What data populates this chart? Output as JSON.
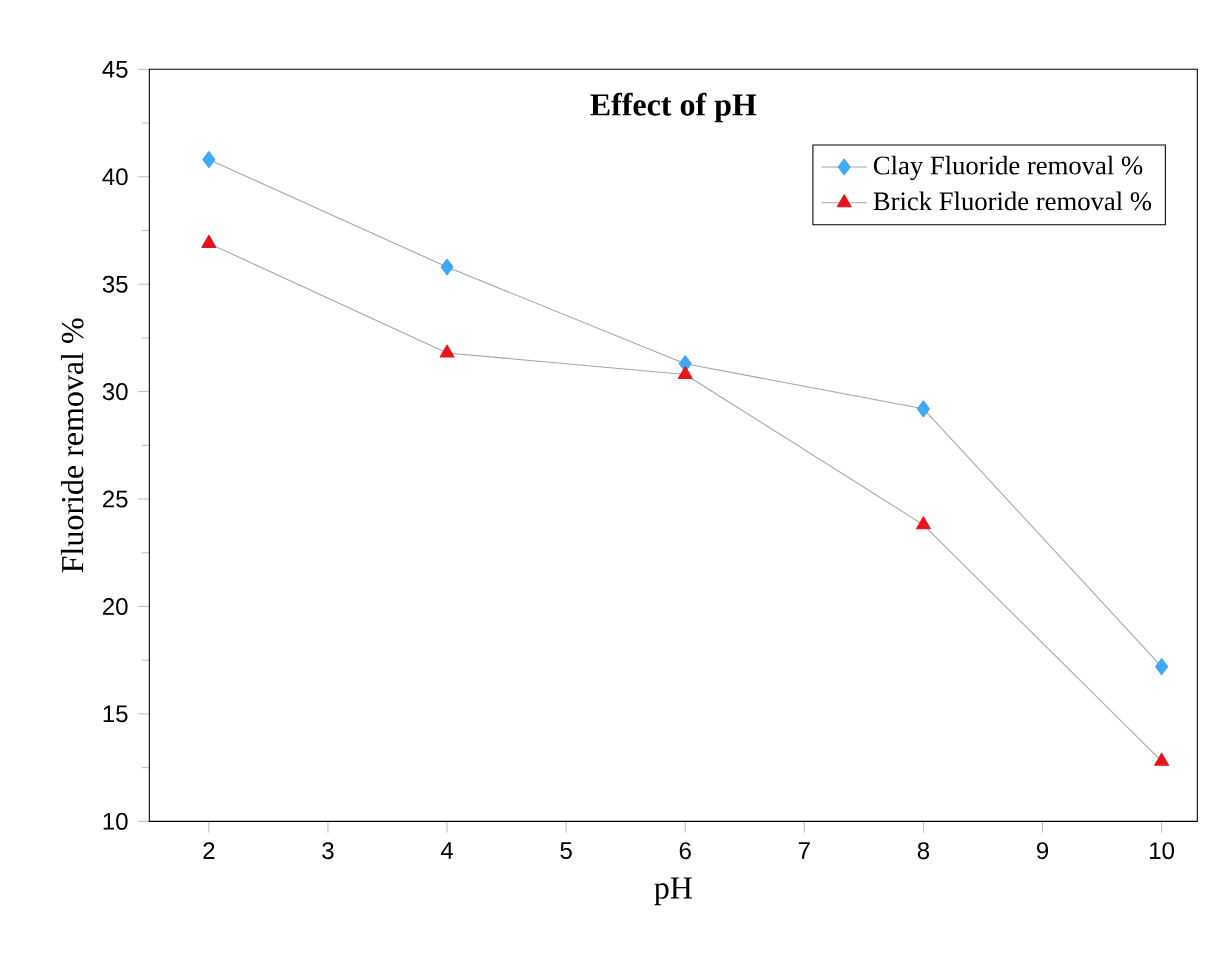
{
  "chart_data": {
    "type": "line",
    "title": "Effect of pH",
    "xlabel": "pH",
    "ylabel": "Fluoride removal %",
    "x": [
      2,
      4,
      6,
      8,
      10
    ],
    "series": [
      {
        "name": "Clay Fluoride removal %",
        "color": "#3fa9f5",
        "marker": "diamond",
        "values": [
          40.8,
          35.8,
          31.3,
          29.2,
          17.2
        ]
      },
      {
        "name": "Brick Fluoride removal %",
        "color": "#e8141c",
        "marker": "triangle",
        "values": [
          36.9,
          31.8,
          30.8,
          23.8,
          12.8
        ]
      }
    ],
    "xlim": [
      1.5,
      10.3
    ],
    "ylim": [
      10,
      45
    ],
    "xticks": [
      2,
      3,
      4,
      5,
      6,
      7,
      8,
      9,
      10
    ],
    "yticks": [
      10,
      15,
      20,
      25,
      30,
      35,
      40,
      45
    ],
    "grid": false,
    "legend": "top right",
    "line_style": "solid"
  }
}
